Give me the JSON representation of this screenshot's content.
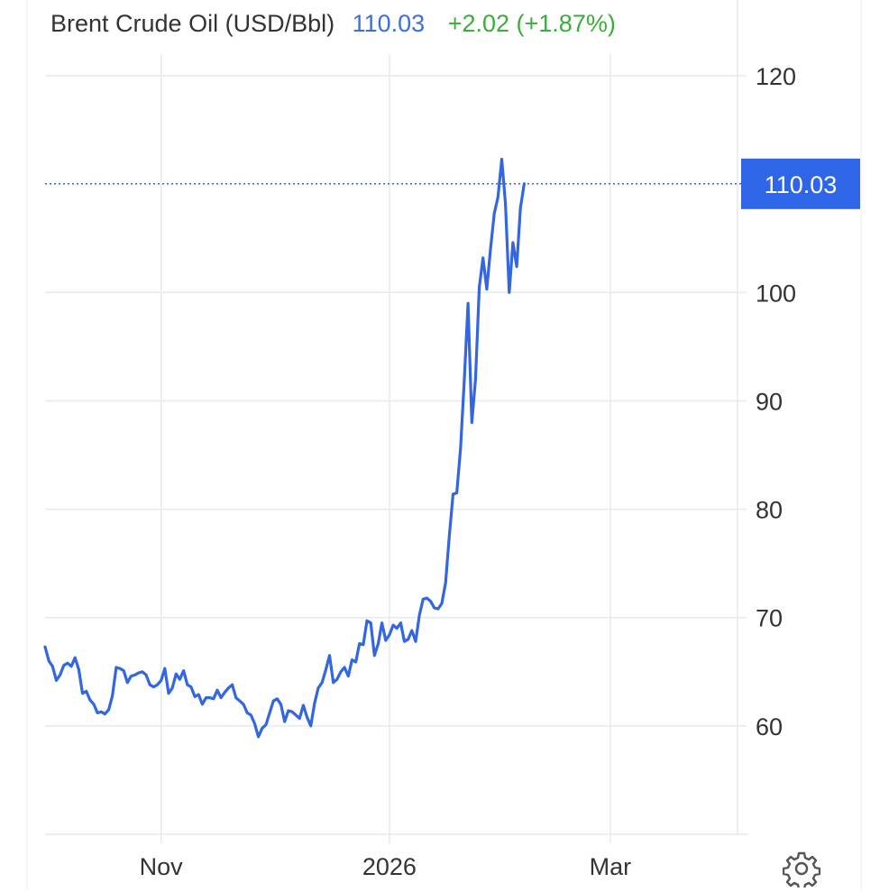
{
  "header": {
    "title": "Brent Crude Oil (USD/Bbl)",
    "price": "110.03",
    "change": "+2.02 (+1.87%)"
  },
  "colors": {
    "line": "#3366e0",
    "accent_label_bg": "#2f66e8",
    "grid": "#e6e9ee",
    "price_text": "#3e6fd8",
    "change_text": "#3aad3a"
  },
  "icons": {
    "settings": "gear-icon"
  },
  "chart_data": {
    "type": "line",
    "title": "Brent Crude Oil (USD/Bbl)",
    "xlabel": "",
    "ylabel": "",
    "x_ticks": [
      {
        "label": "Nov",
        "date": "2025-11-01"
      },
      {
        "label": "2026",
        "date": "2026-01-01"
      },
      {
        "label": "Mar",
        "date": "2026-03-01"
      }
    ],
    "y_ticks": [
      60,
      70,
      80,
      90,
      100,
      120
    ],
    "ylim": [
      50,
      122
    ],
    "xlim": [
      "2025-10-01",
      "2026-04-04"
    ],
    "grid": true,
    "last_value": 110.03,
    "last_value_label": "110.03",
    "series": [
      {
        "points": [
          [
            "2025-10-01",
            67.3
          ],
          [
            "2025-10-02",
            66.0
          ],
          [
            "2025-10-03",
            65.5
          ],
          [
            "2025-10-04",
            64.2
          ],
          [
            "2025-10-05",
            64.7
          ],
          [
            "2025-10-06",
            65.6
          ],
          [
            "2025-10-07",
            65.8
          ],
          [
            "2025-10-08",
            65.5
          ],
          [
            "2025-10-09",
            66.3
          ],
          [
            "2025-10-10",
            65.2
          ],
          [
            "2025-10-11",
            63.0
          ],
          [
            "2025-10-12",
            63.2
          ],
          [
            "2025-10-13",
            62.4
          ],
          [
            "2025-10-14",
            62.0
          ],
          [
            "2025-10-15",
            61.2
          ],
          [
            "2025-10-16",
            61.3
          ],
          [
            "2025-10-17",
            61.1
          ],
          [
            "2025-10-18",
            61.5
          ],
          [
            "2025-10-19",
            62.8
          ],
          [
            "2025-10-20",
            65.4
          ],
          [
            "2025-10-21",
            65.3
          ],
          [
            "2025-10-22",
            65.1
          ],
          [
            "2025-10-23",
            64.0
          ],
          [
            "2025-10-24",
            64.6
          ],
          [
            "2025-10-25",
            64.7
          ],
          [
            "2025-10-26",
            64.9
          ],
          [
            "2025-10-27",
            65.0
          ],
          [
            "2025-10-28",
            64.7
          ],
          [
            "2025-10-29",
            63.8
          ],
          [
            "2025-10-30",
            63.6
          ],
          [
            "2025-10-31",
            63.8
          ],
          [
            "2025-11-01",
            64.2
          ],
          [
            "2025-11-02",
            65.3
          ],
          [
            "2025-11-03",
            63.0
          ],
          [
            "2025-11-04",
            63.5
          ],
          [
            "2025-11-05",
            64.8
          ],
          [
            "2025-11-06",
            64.3
          ],
          [
            "2025-11-07",
            65.1
          ],
          [
            "2025-11-08",
            63.8
          ],
          [
            "2025-11-09",
            63.6
          ],
          [
            "2025-11-10",
            62.7
          ],
          [
            "2025-11-11",
            62.9
          ],
          [
            "2025-11-12",
            62.0
          ],
          [
            "2025-11-13",
            62.6
          ],
          [
            "2025-11-14",
            62.6
          ],
          [
            "2025-11-15",
            62.5
          ],
          [
            "2025-11-16",
            63.3
          ],
          [
            "2025-11-17",
            62.6
          ],
          [
            "2025-11-18",
            63.1
          ],
          [
            "2025-11-19",
            63.5
          ],
          [
            "2025-11-20",
            63.8
          ],
          [
            "2025-11-21",
            62.6
          ],
          [
            "2025-11-22",
            62.3
          ],
          [
            "2025-11-23",
            62.0
          ],
          [
            "2025-11-24",
            61.2
          ],
          [
            "2025-11-25",
            61.0
          ],
          [
            "2025-11-26",
            60.2
          ],
          [
            "2025-11-27",
            59.0
          ],
          [
            "2025-11-28",
            59.8
          ],
          [
            "2025-11-29",
            60.1
          ],
          [
            "2025-11-30",
            61.2
          ],
          [
            "2025-12-01",
            62.3
          ],
          [
            "2025-12-02",
            62.5
          ],
          [
            "2025-12-03",
            62.0
          ],
          [
            "2025-12-04",
            60.4
          ],
          [
            "2025-12-05",
            61.4
          ],
          [
            "2025-12-06",
            61.3
          ],
          [
            "2025-12-07",
            61.0
          ],
          [
            "2025-12-08",
            60.7
          ],
          [
            "2025-12-09",
            61.9
          ],
          [
            "2025-12-10",
            60.8
          ],
          [
            "2025-12-11",
            60.0
          ],
          [
            "2025-12-12",
            62.1
          ],
          [
            "2025-12-13",
            63.5
          ],
          [
            "2025-12-14",
            64.0
          ],
          [
            "2025-12-15",
            65.2
          ],
          [
            "2025-12-16",
            66.5
          ],
          [
            "2025-12-17",
            64.0
          ],
          [
            "2025-12-18",
            64.3
          ],
          [
            "2025-12-19",
            65.0
          ],
          [
            "2025-12-20",
            65.4
          ],
          [
            "2025-12-21",
            64.6
          ],
          [
            "2025-12-22",
            66.1
          ],
          [
            "2025-12-23",
            65.9
          ],
          [
            "2025-12-24",
            67.6
          ],
          [
            "2025-12-25",
            67.5
          ],
          [
            "2025-12-26",
            69.7
          ],
          [
            "2025-12-27",
            69.5
          ],
          [
            "2025-12-28",
            66.5
          ],
          [
            "2025-12-29",
            67.6
          ],
          [
            "2025-12-30",
            69.5
          ],
          [
            "2025-12-31",
            67.9
          ],
          [
            "2026-01-01",
            68.4
          ],
          [
            "2026-01-02",
            69.3
          ],
          [
            "2026-01-03",
            69.0
          ],
          [
            "2026-01-04",
            69.5
          ],
          [
            "2026-01-05",
            67.8
          ],
          [
            "2026-01-06",
            68.0
          ],
          [
            "2026-01-07",
            68.8
          ],
          [
            "2026-01-08",
            67.8
          ],
          [
            "2026-01-09",
            70.2
          ],
          [
            "2026-01-10",
            71.7
          ],
          [
            "2026-01-11",
            71.8
          ],
          [
            "2026-01-12",
            71.5
          ],
          [
            "2026-01-13",
            70.9
          ],
          [
            "2026-01-14",
            70.8
          ],
          [
            "2026-01-15",
            71.3
          ],
          [
            "2026-01-16",
            73.2
          ],
          [
            "2026-01-17",
            77.5
          ],
          [
            "2026-01-18",
            81.4
          ],
          [
            "2026-01-19",
            81.5
          ],
          [
            "2026-01-20",
            85.6
          ],
          [
            "2026-01-21",
            92.0
          ],
          [
            "2026-01-22",
            99.0
          ],
          [
            "2026-01-23",
            88.0
          ],
          [
            "2026-01-24",
            92.0
          ],
          [
            "2026-01-25",
            100.5
          ],
          [
            "2026-01-26",
            103.2
          ],
          [
            "2026-01-27",
            100.3
          ],
          [
            "2026-01-28",
            104.0
          ],
          [
            "2026-01-29",
            107.3
          ],
          [
            "2026-01-30",
            108.8
          ],
          [
            "2026-01-31",
            112.3
          ],
          [
            "2026-02-01",
            108.2
          ],
          [
            "2026-02-02",
            100.0
          ],
          [
            "2026-02-03",
            104.6
          ],
          [
            "2026-02-04",
            102.4
          ],
          [
            "2026-02-05",
            107.8
          ],
          [
            "2026-02-06",
            110.03
          ]
        ]
      }
    ]
  }
}
